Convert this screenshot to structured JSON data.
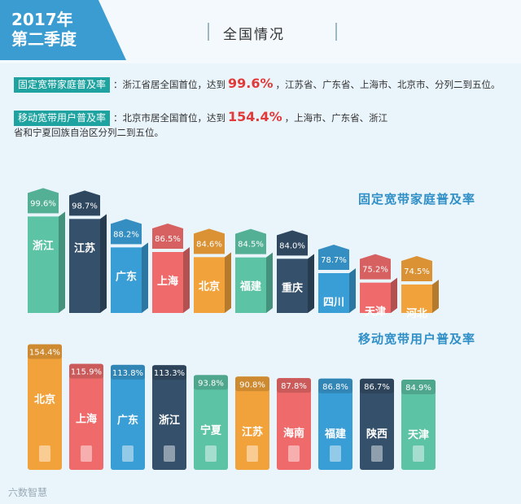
{
  "header": {
    "period": "2017年\n第二季度",
    "title": "全国情况"
  },
  "notes": [
    {
      "tag": "固定宽带家庭普及率",
      "text_before": "：浙江省居全国首位，达到",
      "highlight": "99.6%",
      "text_after": "，江苏省、广东省、上海市、北京市、分列二到五位。"
    },
    {
      "tag": "移动宽带用户普及率",
      "text_before": "：北京市居全国首位，达到",
      "highlight": "154.4%",
      "text_after": "，上海市、广东省、浙江省和宁夏回族自治区分列二到五位。"
    }
  ],
  "watermark": "六数智慧",
  "chart_data": [
    {
      "type": "bar",
      "title": "固定宽带家庭普及率",
      "categories": [
        "浙江",
        "江苏",
        "广东",
        "上海",
        "北京",
        "福建",
        "重庆",
        "四川",
        "天津",
        "河北"
      ],
      "values": [
        99.6,
        98.7,
        88.2,
        86.5,
        84.6,
        84.5,
        84.0,
        78.7,
        75.2,
        74.5
      ],
      "labels": [
        "99.6%",
        "98.7%",
        "88.2%",
        "86.5%",
        "84.6%",
        "84.5%",
        "84.0%",
        "78.7%",
        "75.2%",
        "74.5%"
      ],
      "colors": [
        "#5cc3a5",
        "#35506a",
        "#3a9ed6",
        "#ef6b6b",
        "#f2a23a",
        "#5cc3a5",
        "#35506a",
        "#3a9ed6",
        "#ef6b6b",
        "#f2a23a"
      ]
    },
    {
      "type": "bar",
      "title": "移动宽带用户普及率",
      "categories": [
        "北京",
        "上海",
        "广东",
        "浙江",
        "宁夏",
        "江苏",
        "海南",
        "福建",
        "陕西",
        "天津"
      ],
      "values": [
        154.4,
        115.9,
        113.8,
        113.3,
        93.8,
        90.8,
        87.8,
        86.8,
        86.7,
        84.9
      ],
      "labels": [
        "154.4%",
        "115.9%",
        "113.8%",
        "113.3%",
        "93.8%",
        "90.8%",
        "87.8%",
        "86.8%",
        "86.7%",
        "84.9%"
      ],
      "colors": [
        "#f2a23a",
        "#ef6b6b",
        "#3a9ed6",
        "#35506a",
        "#5cc3a5",
        "#f2a23a",
        "#ef6b6b",
        "#3a9ed6",
        "#35506a",
        "#5cc3a5"
      ]
    }
  ]
}
